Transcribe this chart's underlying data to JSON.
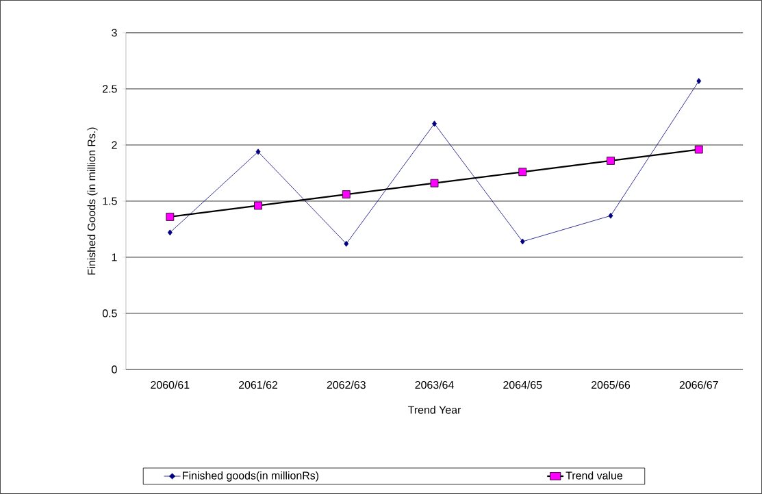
{
  "chart_data": {
    "type": "line",
    "xlabel": "Trend Year",
    "ylabel": "Finished Goods (in million Rs.)",
    "categories": [
      "2060/61",
      "2061/62",
      "2062/63",
      "2063/64",
      "2064/65",
      "2065/66",
      "2066/67"
    ],
    "series": [
      {
        "name": "Finished goods(in millionRs)",
        "color": "#000080",
        "marker": "diamond",
        "values": [
          1.22,
          1.94,
          1.12,
          2.19,
          1.14,
          1.37,
          2.57
        ]
      },
      {
        "name": "Trend value",
        "color": "#ff00ff",
        "marker": "square",
        "values": [
          1.36,
          1.46,
          1.56,
          1.66,
          1.76,
          1.86,
          1.96
        ]
      }
    ],
    "ylim": [
      0,
      3
    ],
    "yticks": [
      0,
      0.5,
      1,
      1.5,
      2,
      2.5,
      3
    ],
    "grid": "y",
    "legend": "bottom"
  }
}
